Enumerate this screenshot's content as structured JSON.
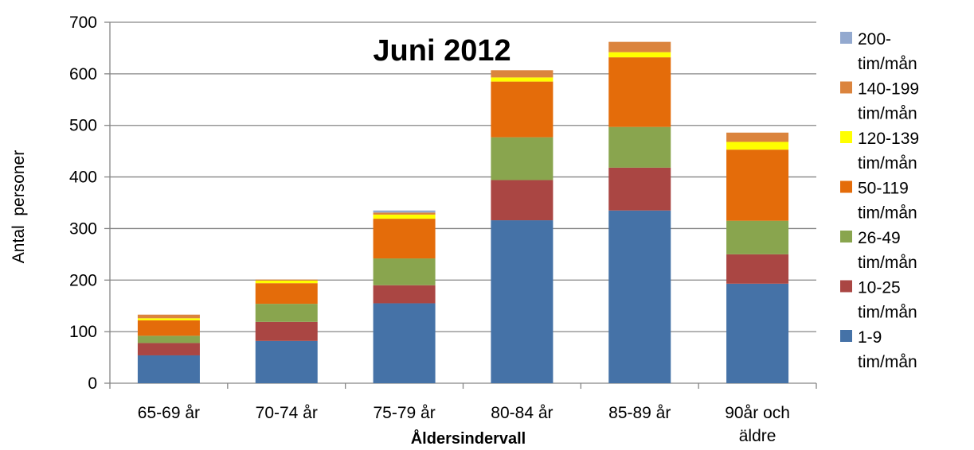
{
  "chart_data": {
    "type": "bar",
    "stacked": true,
    "title": "Juni 2012",
    "xlabel": "Åldersindervall",
    "ylabel": "Antal  personer",
    "ylim": [
      0,
      700
    ],
    "yticks": [
      0,
      100,
      200,
      300,
      400,
      500,
      600,
      700
    ],
    "grid": true,
    "legend_position": "right",
    "categories": [
      "65-69 år",
      "70-74 år",
      "75-79 år",
      "80-84 år",
      "85-89 år",
      "90år och äldre"
    ],
    "category_lines": [
      [
        "65-69 år"
      ],
      [
        "70-74 år"
      ],
      [
        "75-79 år"
      ],
      [
        "80-84 år"
      ],
      [
        "85-89 år"
      ],
      [
        "90år och",
        "äldre"
      ]
    ],
    "series": [
      {
        "name": "1-9 tim/mån",
        "legend_lines": [
          "1-9",
          "tim/mån"
        ],
        "color": "#4572A7",
        "values": [
          54,
          82,
          155,
          316,
          335,
          193
        ]
      },
      {
        "name": "10-25 tim/mån",
        "legend_lines": [
          "10-25",
          "tim/mån"
        ],
        "color": "#AA4643",
        "values": [
          24,
          37,
          35,
          78,
          83,
          57
        ]
      },
      {
        "name": "26-49 tim/mån",
        "legend_lines": [
          "26-49",
          "tim/mån"
        ],
        "color": "#89A54E",
        "values": [
          14,
          35,
          52,
          83,
          79,
          65
        ]
      },
      {
        "name": "50-119 tim/mån",
        "legend_lines": [
          "50-119",
          "tim/mån"
        ],
        "color": "#E46C0A",
        "values": [
          30,
          40,
          77,
          108,
          135,
          138
        ]
      },
      {
        "name": "120-139 tim/mån",
        "legend_lines": [
          "120-139",
          "tim/mån"
        ],
        "color": "#FFFF00",
        "values": [
          4,
          5,
          8,
          8,
          10,
          15
        ]
      },
      {
        "name": "140-199 tim/mån",
        "legend_lines": [
          "140-199",
          "tim/mån"
        ],
        "color": "#DB843D",
        "values": [
          7,
          2,
          4,
          14,
          20,
          18
        ]
      },
      {
        "name": "200- tim/mån",
        "legend_lines": [
          "200-",
          "tim/mån"
        ],
        "color": "#93A9CF",
        "values": [
          0,
          0,
          4,
          0,
          0,
          0
        ]
      }
    ]
  }
}
